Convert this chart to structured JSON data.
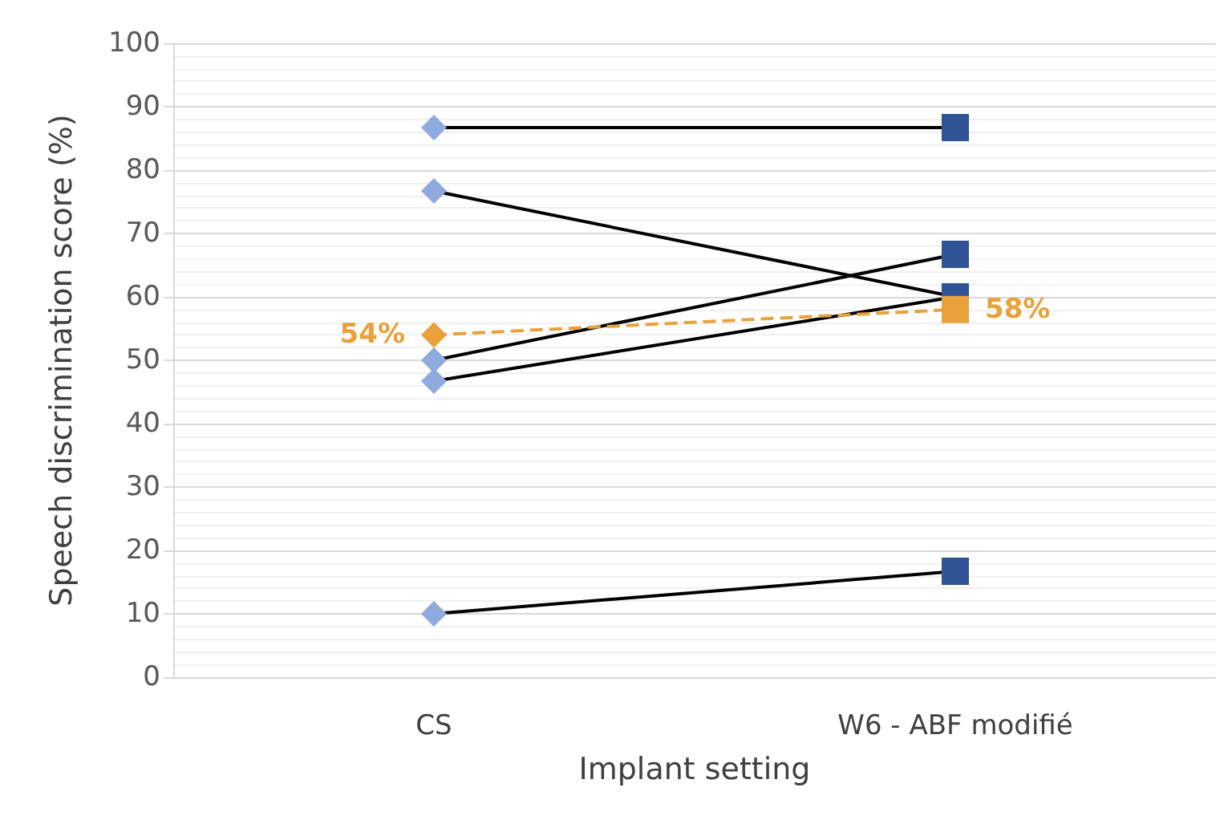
{
  "chart_data": {
    "type": "line",
    "xlabel": "Implant setting",
    "ylabel": "Speech discrimination score (%)",
    "categories": [
      "CS",
      "W6 - ABF modifié"
    ],
    "series": [
      {
        "color": "#000000",
        "colors": [
          "#8faadc",
          "#2f5597"
        ],
        "values": [
          86.7,
          86.7
        ]
      },
      {
        "color": "#000000",
        "colors": [
          "#8faadc",
          "#2f5597"
        ],
        "values": [
          76.7,
          60
        ]
      },
      {
        "color": "#000000",
        "colors": [
          "#8faadc",
          "#2f5597"
        ],
        "values": [
          50,
          66.7
        ]
      },
      {
        "color": "#000000",
        "colors": [
          "#8faadc",
          "#2f5597"
        ],
        "values": [
          46.7,
          60
        ]
      },
      {
        "color": "#000000",
        "colors": [
          "#8faadc",
          "#2f5597"
        ],
        "values": [
          10,
          16.7
        ]
      },
      {
        "color": "#e9a23b",
        "line_style": "dashed",
        "values": [
          54,
          58
        ],
        "value_labels": [
          "54%",
          "58%"
        ]
      }
    ],
    "marker": [
      "diamond",
      "square"
    ],
    "ylim": [
      0,
      100
    ],
    "yticks": [
      0,
      10,
      20,
      30,
      40,
      50,
      60,
      70,
      80,
      90,
      100
    ],
    "grid": "y"
  }
}
